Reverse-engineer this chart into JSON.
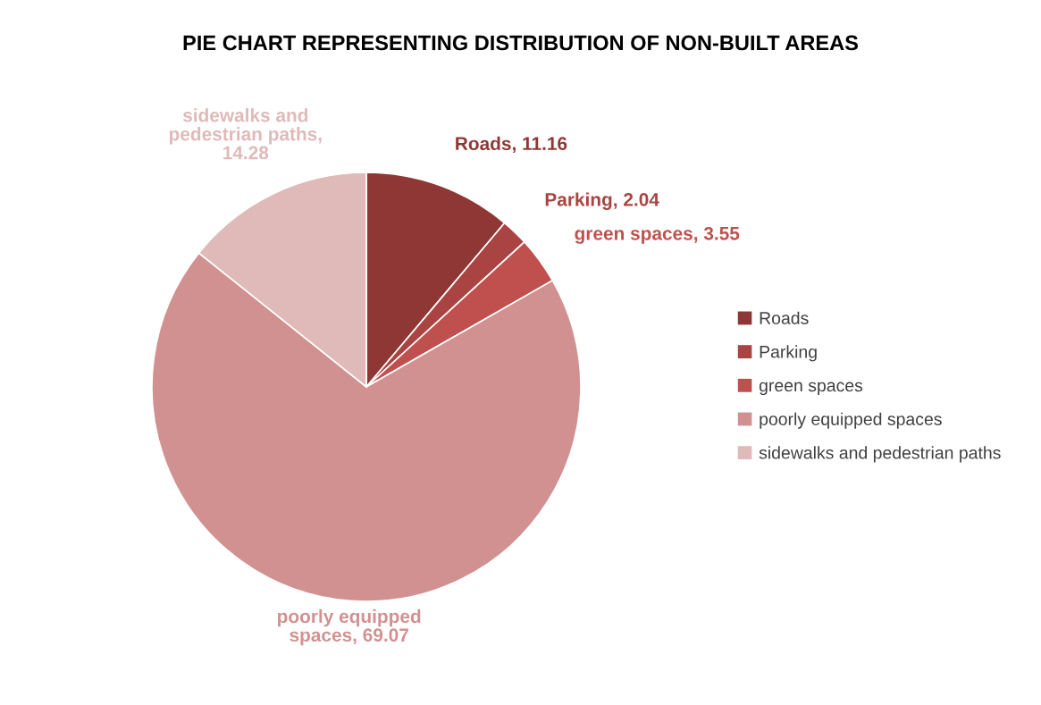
{
  "chart_data": {
    "type": "pie",
    "title": "PIE CHART REPRESENTING DISTRIBUTION OF NON-BUILT AREAS",
    "categories": [
      "Roads",
      "Parking",
      "green spaces",
      "poorly equipped spaces",
      "sidewalks and pedestrian paths"
    ],
    "values": [
      11.16,
      2.04,
      3.55,
      69.07,
      14.28
    ],
    "colors": [
      "#8e3735",
      "#a94442",
      "#c0504d",
      "#d19190",
      "#e0b9b9"
    ],
    "value_labels": [
      "Roads, 11.16",
      "Parking, 2.04",
      "green spaces, 3.55",
      "poorly equipped\nspaces, 69.07",
      "sidewalks and\npedestrian paths,\n14.28"
    ],
    "legend": "right"
  }
}
